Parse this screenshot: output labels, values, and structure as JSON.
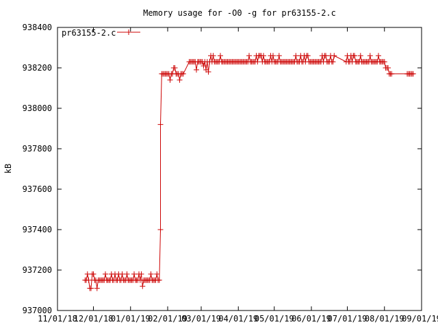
{
  "chart_data": {
    "type": "line",
    "title": "Memory usage for -O0 -g for pr63155-2.c",
    "xlabel": "",
    "ylabel": "kB",
    "ylim": [
      937000,
      938400
    ],
    "yticks": [
      937000,
      937200,
      937400,
      937600,
      937800,
      938000,
      938200,
      938400
    ],
    "xlim": [
      "2018-11-01",
      "2019-09-01"
    ],
    "xticks": [
      "2018-11-01",
      "2018-12-01",
      "2019-01-01",
      "2019-02-01",
      "2019-03-01",
      "2019-04-01",
      "2019-05-01",
      "2019-06-01",
      "2019-07-01",
      "2019-08-01",
      "2019-09-01"
    ],
    "xtick_labels": [
      "11/01/18",
      "12/01/18",
      "01/01/19",
      "02/01/19",
      "03/01/19",
      "04/01/19",
      "05/01/19",
      "06/01/19",
      "07/01/19",
      "08/01/19",
      "09/01/19"
    ],
    "grid": false,
    "legend_position": "top-left",
    "series": [
      {
        "name": "pr63155-2.c",
        "color": "#cc0000",
        "marker": "plus",
        "points": [
          [
            "2018-11-24",
            937150
          ],
          [
            "2018-11-25",
            937150
          ],
          [
            "2018-11-26",
            937180
          ],
          [
            "2018-11-27",
            937150
          ],
          [
            "2018-11-28",
            937110
          ],
          [
            "2018-11-29",
            937110
          ],
          [
            "2018-11-30",
            937180
          ],
          [
            "2018-12-01",
            937180
          ],
          [
            "2018-12-02",
            937150
          ],
          [
            "2018-12-03",
            937150
          ],
          [
            "2018-12-04",
            937110
          ],
          [
            "2018-12-05",
            937150
          ],
          [
            "2018-12-06",
            937150
          ],
          [
            "2018-12-07",
            937150
          ],
          [
            "2018-12-08",
            937150
          ],
          [
            "2018-12-09",
            937150
          ],
          [
            "2018-12-10",
            937150
          ],
          [
            "2018-12-11",
            937180
          ],
          [
            "2018-12-12",
            937150
          ],
          [
            "2018-12-13",
            937150
          ],
          [
            "2018-12-14",
            937150
          ],
          [
            "2018-12-15",
            937150
          ],
          [
            "2018-12-16",
            937180
          ],
          [
            "2018-12-17",
            937150
          ],
          [
            "2018-12-18",
            937150
          ],
          [
            "2018-12-19",
            937180
          ],
          [
            "2018-12-20",
            937150
          ],
          [
            "2018-12-21",
            937150
          ],
          [
            "2018-12-22",
            937180
          ],
          [
            "2018-12-23",
            937150
          ],
          [
            "2018-12-24",
            937150
          ],
          [
            "2018-12-25",
            937180
          ],
          [
            "2018-12-26",
            937150
          ],
          [
            "2018-12-27",
            937150
          ],
          [
            "2018-12-28",
            937150
          ],
          [
            "2018-12-29",
            937180
          ],
          [
            "2018-12-30",
            937150
          ],
          [
            "2018-12-31",
            937150
          ],
          [
            "2019-01-01",
            937150
          ],
          [
            "2019-01-02",
            937150
          ],
          [
            "2019-01-03",
            937150
          ],
          [
            "2019-01-04",
            937180
          ],
          [
            "2019-01-05",
            937150
          ],
          [
            "2019-01-06",
            937150
          ],
          [
            "2019-01-07",
            937150
          ],
          [
            "2019-01-08",
            937180
          ],
          [
            "2019-01-09",
            937150
          ],
          [
            "2019-01-10",
            937180
          ],
          [
            "2019-01-11",
            937120
          ],
          [
            "2019-01-12",
            937150
          ],
          [
            "2019-01-13",
            937150
          ],
          [
            "2019-01-14",
            937150
          ],
          [
            "2019-01-15",
            937150
          ],
          [
            "2019-01-16",
            937150
          ],
          [
            "2019-01-17",
            937150
          ],
          [
            "2019-01-18",
            937180
          ],
          [
            "2019-01-19",
            937150
          ],
          [
            "2019-01-20",
            937150
          ],
          [
            "2019-01-21",
            937150
          ],
          [
            "2019-01-22",
            937150
          ],
          [
            "2019-01-23",
            937180
          ],
          [
            "2019-01-24",
            937150
          ],
          [
            "2019-01-25",
            937150
          ],
          [
            "2019-01-26",
            937400
          ],
          [
            "2019-01-26",
            937920
          ],
          [
            "2019-01-27",
            938170
          ],
          [
            "2019-01-28",
            938170
          ],
          [
            "2019-01-29",
            938170
          ],
          [
            "2019-01-30",
            938170
          ],
          [
            "2019-01-31",
            938170
          ],
          [
            "2019-02-01",
            938170
          ],
          [
            "2019-02-02",
            938170
          ],
          [
            "2019-02-03",
            938140
          ],
          [
            "2019-02-04",
            938170
          ],
          [
            "2019-02-05",
            938170
          ],
          [
            "2019-02-06",
            938200
          ],
          [
            "2019-02-07",
            938200
          ],
          [
            "2019-02-08",
            938170
          ],
          [
            "2019-02-09",
            938170
          ],
          [
            "2019-02-10",
            938170
          ],
          [
            "2019-02-11",
            938140
          ],
          [
            "2019-02-12",
            938170
          ],
          [
            "2019-02-13",
            938170
          ],
          [
            "2019-02-14",
            938170
          ],
          [
            "2019-02-19",
            938230
          ],
          [
            "2019-02-20",
            938230
          ],
          [
            "2019-02-21",
            938230
          ],
          [
            "2019-02-22",
            938230
          ],
          [
            "2019-02-23",
            938230
          ],
          [
            "2019-02-24",
            938230
          ],
          [
            "2019-02-25",
            938190
          ],
          [
            "2019-02-26",
            938230
          ],
          [
            "2019-02-27",
            938230
          ],
          [
            "2019-02-28",
            938230
          ],
          [
            "2019-03-01",
            938230
          ],
          [
            "2019-03-02",
            938230
          ],
          [
            "2019-03-03",
            938210
          ],
          [
            "2019-03-04",
            938230
          ],
          [
            "2019-03-05",
            938190
          ],
          [
            "2019-03-06",
            938230
          ],
          [
            "2019-03-07",
            938180
          ],
          [
            "2019-03-08",
            938230
          ],
          [
            "2019-03-09",
            938260
          ],
          [
            "2019-03-10",
            938230
          ],
          [
            "2019-03-11",
            938260
          ],
          [
            "2019-03-12",
            938230
          ],
          [
            "2019-03-13",
            938230
          ],
          [
            "2019-03-14",
            938230
          ],
          [
            "2019-03-15",
            938230
          ],
          [
            "2019-03-16",
            938230
          ],
          [
            "2019-03-17",
            938260
          ],
          [
            "2019-03-18",
            938230
          ],
          [
            "2019-03-19",
            938230
          ],
          [
            "2019-03-20",
            938230
          ],
          [
            "2019-03-21",
            938230
          ],
          [
            "2019-03-22",
            938230
          ],
          [
            "2019-03-23",
            938230
          ],
          [
            "2019-03-24",
            938230
          ],
          [
            "2019-03-25",
            938230
          ],
          [
            "2019-03-26",
            938230
          ],
          [
            "2019-03-27",
            938230
          ],
          [
            "2019-03-28",
            938230
          ],
          [
            "2019-03-29",
            938230
          ],
          [
            "2019-03-30",
            938230
          ],
          [
            "2019-03-31",
            938230
          ],
          [
            "2019-04-01",
            938230
          ],
          [
            "2019-04-02",
            938230
          ],
          [
            "2019-04-03",
            938230
          ],
          [
            "2019-04-04",
            938230
          ],
          [
            "2019-04-05",
            938230
          ],
          [
            "2019-04-06",
            938230
          ],
          [
            "2019-04-07",
            938230
          ],
          [
            "2019-04-08",
            938230
          ],
          [
            "2019-04-09",
            938230
          ],
          [
            "2019-04-10",
            938260
          ],
          [
            "2019-04-11",
            938230
          ],
          [
            "2019-04-12",
            938230
          ],
          [
            "2019-04-13",
            938230
          ],
          [
            "2019-04-14",
            938230
          ],
          [
            "2019-04-15",
            938230
          ],
          [
            "2019-04-16",
            938260
          ],
          [
            "2019-04-17",
            938230
          ],
          [
            "2019-04-18",
            938260
          ],
          [
            "2019-04-19",
            938260
          ],
          [
            "2019-04-20",
            938260
          ],
          [
            "2019-04-21",
            938230
          ],
          [
            "2019-04-22",
            938260
          ],
          [
            "2019-04-23",
            938230
          ],
          [
            "2019-04-24",
            938230
          ],
          [
            "2019-04-25",
            938230
          ],
          [
            "2019-04-26",
            938230
          ],
          [
            "2019-04-27",
            938230
          ],
          [
            "2019-04-28",
            938260
          ],
          [
            "2019-04-29",
            938230
          ],
          [
            "2019-04-30",
            938260
          ],
          [
            "2019-05-01",
            938230
          ],
          [
            "2019-05-02",
            938230
          ],
          [
            "2019-05-03",
            938230
          ],
          [
            "2019-05-04",
            938230
          ],
          [
            "2019-05-05",
            938260
          ],
          [
            "2019-05-06",
            938230
          ],
          [
            "2019-05-07",
            938230
          ],
          [
            "2019-05-08",
            938230
          ],
          [
            "2019-05-09",
            938230
          ],
          [
            "2019-05-10",
            938230
          ],
          [
            "2019-05-11",
            938230
          ],
          [
            "2019-05-12",
            938230
          ],
          [
            "2019-05-13",
            938230
          ],
          [
            "2019-05-14",
            938230
          ],
          [
            "2019-05-15",
            938230
          ],
          [
            "2019-05-16",
            938230
          ],
          [
            "2019-05-17",
            938230
          ],
          [
            "2019-05-18",
            938230
          ],
          [
            "2019-05-19",
            938260
          ],
          [
            "2019-05-20",
            938230
          ],
          [
            "2019-05-21",
            938230
          ],
          [
            "2019-05-22",
            938230
          ],
          [
            "2019-05-23",
            938260
          ],
          [
            "2019-05-24",
            938230
          ],
          [
            "2019-05-25",
            938230
          ],
          [
            "2019-05-26",
            938260
          ],
          [
            "2019-05-27",
            938230
          ],
          [
            "2019-05-28",
            938260
          ],
          [
            "2019-05-29",
            938260
          ],
          [
            "2019-05-30",
            938230
          ],
          [
            "2019-05-31",
            938230
          ],
          [
            "2019-06-01",
            938230
          ],
          [
            "2019-06-02",
            938230
          ],
          [
            "2019-06-03",
            938230
          ],
          [
            "2019-06-04",
            938230
          ],
          [
            "2019-06-05",
            938230
          ],
          [
            "2019-06-06",
            938230
          ],
          [
            "2019-06-07",
            938230
          ],
          [
            "2019-06-08",
            938230
          ],
          [
            "2019-06-09",
            938230
          ],
          [
            "2019-06-10",
            938260
          ],
          [
            "2019-06-11",
            938230
          ],
          [
            "2019-06-12",
            938260
          ],
          [
            "2019-06-13",
            938260
          ],
          [
            "2019-06-14",
            938230
          ],
          [
            "2019-06-15",
            938230
          ],
          [
            "2019-06-16",
            938230
          ],
          [
            "2019-06-17",
            938260
          ],
          [
            "2019-06-18",
            938230
          ],
          [
            "2019-06-19",
            938230
          ],
          [
            "2019-06-20",
            938260
          ],
          [
            "2019-06-30",
            938230
          ],
          [
            "2019-07-01",
            938260
          ],
          [
            "2019-07-02",
            938230
          ],
          [
            "2019-07-03",
            938230
          ],
          [
            "2019-07-04",
            938260
          ],
          [
            "2019-07-05",
            938230
          ],
          [
            "2019-07-06",
            938260
          ],
          [
            "2019-07-07",
            938260
          ],
          [
            "2019-07-08",
            938230
          ],
          [
            "2019-07-09",
            938230
          ],
          [
            "2019-07-10",
            938230
          ],
          [
            "2019-07-11",
            938230
          ],
          [
            "2019-07-12",
            938260
          ],
          [
            "2019-07-13",
            938230
          ],
          [
            "2019-07-14",
            938230
          ],
          [
            "2019-07-15",
            938230
          ],
          [
            "2019-07-16",
            938230
          ],
          [
            "2019-07-17",
            938230
          ],
          [
            "2019-07-18",
            938230
          ],
          [
            "2019-07-19",
            938230
          ],
          [
            "2019-07-20",
            938260
          ],
          [
            "2019-07-21",
            938230
          ],
          [
            "2019-07-22",
            938230
          ],
          [
            "2019-07-23",
            938230
          ],
          [
            "2019-07-24",
            938230
          ],
          [
            "2019-07-25",
            938230
          ],
          [
            "2019-07-26",
            938230
          ],
          [
            "2019-07-27",
            938260
          ],
          [
            "2019-07-28",
            938230
          ],
          [
            "2019-07-29",
            938230
          ],
          [
            "2019-07-30",
            938230
          ],
          [
            "2019-07-31",
            938230
          ],
          [
            "2019-08-01",
            938230
          ],
          [
            "2019-08-02",
            938200
          ],
          [
            "2019-08-03",
            938200
          ],
          [
            "2019-08-04",
            938200
          ],
          [
            "2019-08-05",
            938170
          ],
          [
            "2019-08-06",
            938170
          ],
          [
            "2019-08-07",
            938170
          ],
          [
            "2019-08-20",
            938170
          ],
          [
            "2019-08-21",
            938170
          ],
          [
            "2019-08-22",
            938170
          ],
          [
            "2019-08-23",
            938170
          ],
          [
            "2019-08-24",
            938170
          ],
          [
            "2019-08-25",
            938170
          ]
        ]
      }
    ]
  }
}
